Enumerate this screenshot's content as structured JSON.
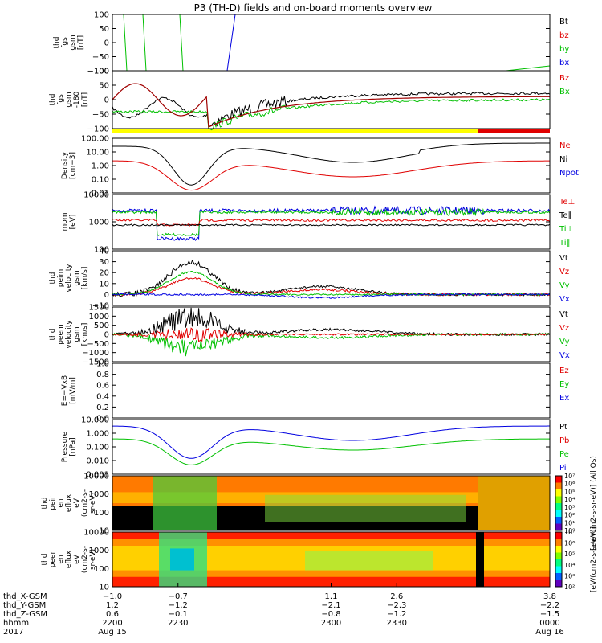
{
  "chart_data": {
    "type": "line",
    "title": "P3 (TH-D) fields and on-board moments overview",
    "panels": [
      {
        "key": "fgs",
        "ylabel": [
          "thd",
          "fgs",
          "gsm",
          "[nT]"
        ],
        "ticks": [
          "100",
          "50",
          "0",
          "−50",
          "−100"
        ],
        "legend": [
          {
            "name": "Bt",
            "color": "#000000"
          },
          {
            "name": "bz",
            "color": "#e00000"
          },
          {
            "name": "by",
            "color": "#00c000"
          },
          {
            "name": "bx",
            "color": "#0000e0"
          }
        ]
      },
      {
        "key": "fgs_dsl",
        "ylabel": [
          "thd",
          "fgs",
          "gsm",
          "-180",
          "[nT]"
        ],
        "ticks": [
          "100",
          "50",
          "0",
          "−50",
          "−100"
        ],
        "legend": [
          {
            "name": "Bz",
            "color": "#e00000"
          },
          {
            "name": "Bx",
            "color": "#00c000"
          }
        ]
      },
      {
        "key": "density",
        "ylabel": [
          "Density",
          "[cm−3]"
        ],
        "ticks": [
          "100.00",
          "10.00",
          "1.00",
          "0.10",
          "0.01"
        ],
        "legend": [
          {
            "name": "Ne",
            "color": "#e00000"
          },
          {
            "name": "Ni",
            "color": "#000000"
          },
          {
            "name": "Npot",
            "color": "#0000e0"
          }
        ]
      },
      {
        "key": "temp",
        "ylabel": [
          "mom",
          "[eV]"
        ],
        "ticks": [
          "10000",
          "1000",
          "100"
        ],
        "legend": [
          {
            "name": "Te⊥",
            "color": "#e00000"
          },
          {
            "name": "Te∥",
            "color": "#000000"
          },
          {
            "name": "Ti⊥",
            "color": "#00c000"
          },
          {
            "name": "Ti∥",
            "color": "#00c000"
          }
        ]
      },
      {
        "key": "vi",
        "ylabel": [
          "thd",
          "peim",
          "velocity",
          "gsm",
          "[km/s]"
        ],
        "ticks": [
          "40",
          "30",
          "20",
          "10",
          "0",
          "−10"
        ],
        "legend": [
          {
            "name": "Vt",
            "color": "#000000"
          },
          {
            "name": "Vz",
            "color": "#e00000"
          },
          {
            "name": "Vy",
            "color": "#00c000"
          },
          {
            "name": "Vx",
            "color": "#0000e0"
          }
        ]
      },
      {
        "key": "ve",
        "ylabel": [
          "thd",
          "peem",
          "velocity",
          "gsm",
          "[km/s]"
        ],
        "ticks": [
          "1500",
          "1000",
          "500",
          "0",
          "−500",
          "−1000",
          "−1500"
        ],
        "legend": [
          {
            "name": "Vt",
            "color": "#000000"
          },
          {
            "name": "Vz",
            "color": "#e00000"
          },
          {
            "name": "Vy",
            "color": "#00c000"
          },
          {
            "name": "Vx",
            "color": "#0000e0"
          }
        ]
      },
      {
        "key": "efield",
        "ylabel": [
          "E=−VxB",
          "[mV/m]"
        ],
        "ticks": [
          "1.0",
          "0.8",
          "0.6",
          "0.4",
          "0.2",
          "0.0"
        ],
        "legend": [
          {
            "name": "Ez",
            "color": "#e00000"
          },
          {
            "name": "Ey",
            "color": "#00c000"
          },
          {
            "name": "Ex",
            "color": "#0000e0"
          }
        ]
      },
      {
        "key": "pressure",
        "ylabel": [
          "Pressure",
          "[nPa]"
        ],
        "ticks": [
          "10.000",
          "1.000",
          "0.100",
          "0.010",
          "0.001"
        ],
        "legend": [
          {
            "name": "Pt",
            "color": "#000000"
          },
          {
            "name": "Pb",
            "color": "#e00000"
          },
          {
            "name": "Pe",
            "color": "#00c000"
          },
          {
            "name": "Pi",
            "color": "#0000e0"
          }
        ]
      },
      {
        "key": "ion_spec",
        "ylabel": [
          "thd",
          "peir",
          "en",
          "eflux",
          "eV",
          "(cm2-s-",
          "sr-eV)"
        ],
        "ticks": [
          "10000",
          "1000",
          "100",
          "10"
        ],
        "legend": []
      },
      {
        "key": "elec_spec",
        "ylabel": [
          "thd",
          "peer",
          "en",
          "eflux",
          "eV",
          "(cm2-s-",
          "sr-eV)"
        ],
        "ticks": [
          "10000",
          "1000",
          "100",
          "10"
        ],
        "legend": []
      }
    ],
    "colorbar_ion": {
      "ticks": [
        "10⁷",
        "10⁶",
        "10⁵",
        "10⁴",
        "10³",
        "10²",
        "10¹",
        "10⁰"
      ],
      "label": "[eV/(cm2-s-sr-eV)] (All Qs)"
    },
    "colorbar_elec": {
      "ticks": [
        "10⁷",
        "10⁶",
        "10⁵",
        "10⁴",
        "10³",
        "10²"
      ],
      "label": "[eV/(cm2-s-sr-eV)]"
    },
    "x_axis": {
      "rows": [
        {
          "label": "thd_X-GSM",
          "values": [
            "−1.0",
            "−0.7",
            "1.1",
            "2.6",
            "3.8"
          ]
        },
        {
          "label": "thd_Y-GSM",
          "values": [
            "1.2",
            "−1.2",
            "−2.1",
            "−2.3",
            "−2.2"
          ]
        },
        {
          "label": "thd_Z-GSM",
          "values": [
            "0.6",
            "−0.1",
            "−0.8",
            "−1.2",
            "−1.5"
          ]
        },
        {
          "label": "hhmm",
          "values": [
            "2200",
            "2230",
            "2300",
            "2330",
            "0000"
          ]
        },
        {
          "label": "2017",
          "values": [
            "Aug 15",
            "",
            "",
            "",
            "Aug 16"
          ]
        }
      ],
      "hhmm": [
        2200,
        2230,
        2300,
        2330,
        2400
      ]
    }
  }
}
